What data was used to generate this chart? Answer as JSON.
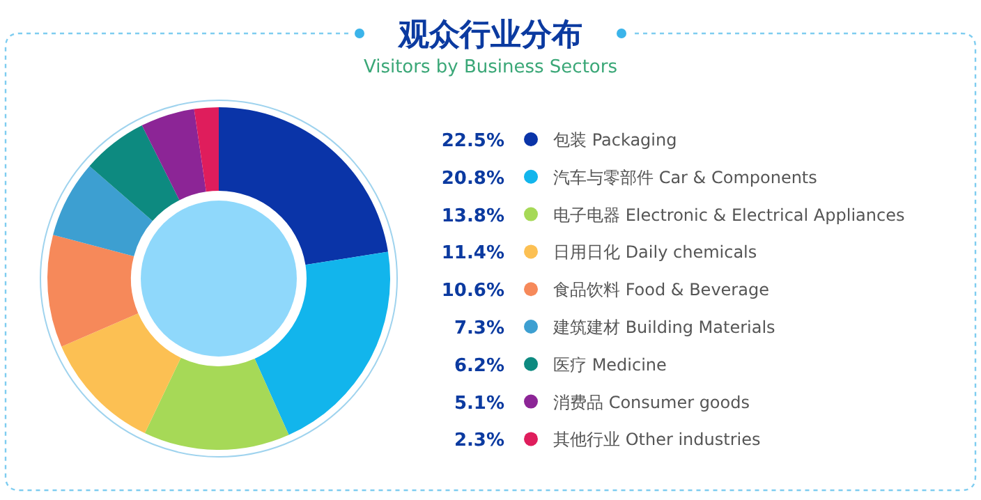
{
  "chart_data": {
    "type": "donut",
    "title": "观众行业分布",
    "subtitle": "Visitors by Business Sectors",
    "categories": [
      "包装 Packaging",
      "汽车与零部件 Car & Components",
      "电子电器 Electronic & Electrical Appliances",
      "日用日化 Daily chemicals",
      "食品饮料 Food & Beverage",
      "建筑建材 Building Materials",
      "医疗 Medicine",
      "消费品 Consumer goods",
      "其他行业 Other industries"
    ],
    "values": [
      22.5,
      20.8,
      13.8,
      11.4,
      10.6,
      7.3,
      6.2,
      5.1,
      2.3
    ],
    "value_labels": [
      "22.5%",
      "20.8%",
      "13.8%",
      "11.4%",
      "10.6%",
      "7.3%",
      "6.2%",
      "5.1%",
      "2.3%"
    ],
    "colors": [
      "#0a34a8",
      "#12b5ec",
      "#a6d957",
      "#fcc053",
      "#f6895a",
      "#3d9fd1",
      "#0d8a80",
      "#8c2596",
      "#df1d5c"
    ],
    "legend": "right"
  }
}
